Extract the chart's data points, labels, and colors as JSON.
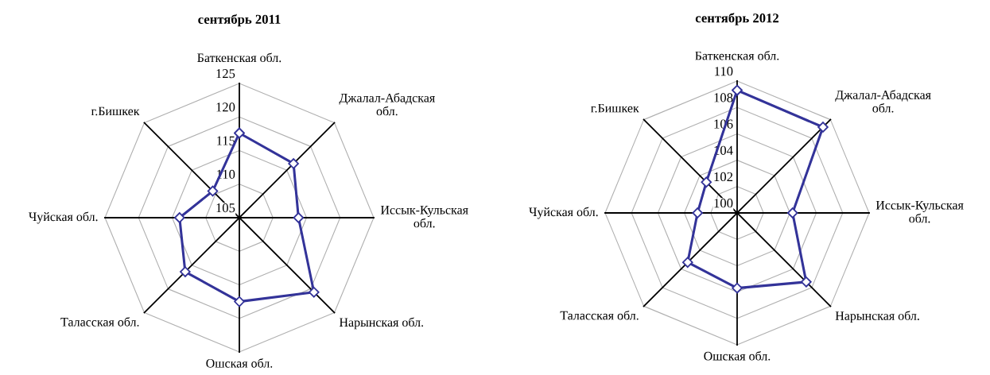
{
  "chart_data": [
    {
      "type": "radar",
      "title": "сентябрь 2011",
      "categories": [
        "Баткенская обл.",
        "Джалал-Абадская\nобл.",
        "Иссык-Кульская\nобл.",
        "Нарынская обл.",
        "Ошская обл.",
        "Таласская обл.",
        "Чуйская обл.",
        "г.Бишкек"
      ],
      "series": [
        {
          "color": "#333399",
          "values": [
            117.6,
            116.4,
            113.8,
            120.7,
            117.5,
            116.4,
            113.9,
            110.6
          ]
        }
      ],
      "ylim": [
        105,
        125
      ],
      "yticks": [
        105,
        110,
        115,
        120,
        125
      ],
      "grid": true,
      "marker": "diamond"
    },
    {
      "type": "radar",
      "title": "сентябрь 2012",
      "categories": [
        "Баткенская обл.",
        "Джалал-Абадская\nобл.",
        "Иссык-Кульская\nобл.",
        "Нарынская обл.",
        "Ошская обл.",
        "Таласская обл.",
        "Чуйская обл.",
        "г.Бишкек"
      ],
      "series": [
        {
          "color": "#333399",
          "values": [
            109.3,
            109.2,
            104.2,
            107.4,
            105.7,
            105.3,
            103.0,
            103.3
          ]
        }
      ],
      "ylim": [
        100,
        110
      ],
      "yticks": [
        100,
        102,
        104,
        106,
        108,
        110
      ],
      "grid": true,
      "marker": "diamond"
    }
  ]
}
